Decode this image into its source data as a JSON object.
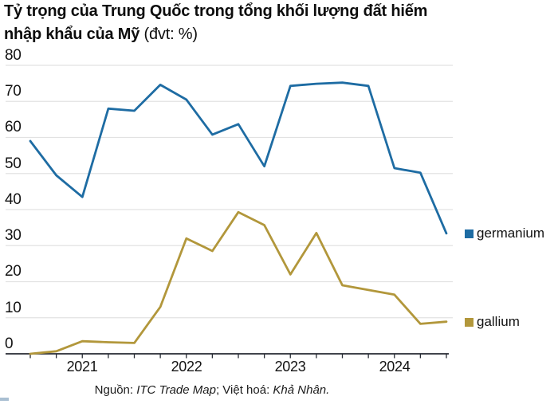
{
  "title": {
    "line1": "Tỷ trọng của Trung Quốc trong tổng khối lượng đất hiếm",
    "line2": "nhập khẩu của Mỹ",
    "unit": "(đvt: %)"
  },
  "source": {
    "prefix": "Nguồn: ",
    "source_name": "ITC Trade Map",
    "middle": "; Việt hoá: ",
    "translator": "Khả Nhân."
  },
  "chart_data": {
    "type": "line",
    "x_period": "quarterly",
    "x": [
      "2020 Q3",
      "2020 Q4",
      "2021 Q1",
      "2021 Q2",
      "2021 Q3",
      "2021 Q4",
      "2022 Q1",
      "2022 Q2",
      "2022 Q3",
      "2022 Q4",
      "2023 Q1",
      "2023 Q2",
      "2023 Q3",
      "2023 Q4",
      "2024 Q1",
      "2024 Q2",
      "2024 Q3"
    ],
    "series": [
      {
        "name": "germanium",
        "color": "#1e6ca3",
        "values": [
          59,
          49.5,
          43.5,
          68,
          67.4,
          74.6,
          70.5,
          60.8,
          63.7,
          52,
          74.3,
          74.9,
          75.2,
          74.3,
          51.5,
          50.2,
          33.4
        ]
      },
      {
        "name": "gallium",
        "color": "#b2973b",
        "values": [
          0,
          0.7,
          3.5,
          3.2,
          3.0,
          13,
          32,
          28.5,
          39.3,
          35.7,
          22,
          33.5,
          19,
          17.7,
          16.4,
          8.3,
          8.9
        ]
      }
    ],
    "xticks": [
      "2021",
      "2022",
      "2023",
      "2024"
    ],
    "xtick_indices": [
      2,
      6,
      10,
      14
    ],
    "yticks": [
      80,
      70,
      60,
      50,
      40,
      30,
      20,
      10,
      0
    ],
    "ylim": [
      0,
      80
    ],
    "grid": "horizontal",
    "gridline_color": "#e2e2e2",
    "axis_color": "#262a33",
    "legend_position": "right-of-line-ends"
  }
}
